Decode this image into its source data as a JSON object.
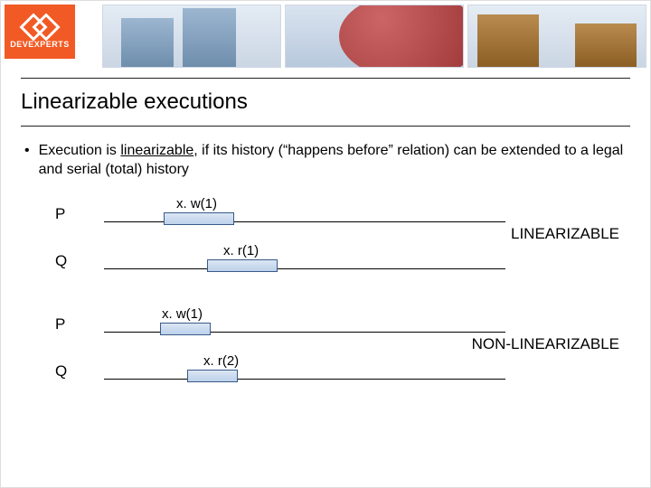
{
  "logo": {
    "text": "DEVEXPERTS",
    "bg_color": "#f15a24"
  },
  "title": "Linearizable executions",
  "bullet": {
    "prefix": "Execution is ",
    "underlined": "linearizable",
    "rest": ", if its history (“happens before” relation) can be extended to a legal and serial (total) history"
  },
  "diagrams": [
    {
      "result": "LINEARIZABLE",
      "rows": [
        {
          "label": "P",
          "op": "x. w(1)"
        },
        {
          "label": "Q",
          "op": "x. r(1)"
        }
      ]
    },
    {
      "result": "NON-LINEARIZABLE",
      "rows": [
        {
          "label": "P",
          "op": "x. w(1)"
        },
        {
          "label": "Q",
          "op": "x. r(2)"
        }
      ]
    }
  ],
  "colors": {
    "op_bar_border": "#3a5a8a",
    "op_bar_fill_top": "#dbe6f4",
    "op_bar_fill_bottom": "#bcd1ea",
    "rule": "#222222"
  }
}
